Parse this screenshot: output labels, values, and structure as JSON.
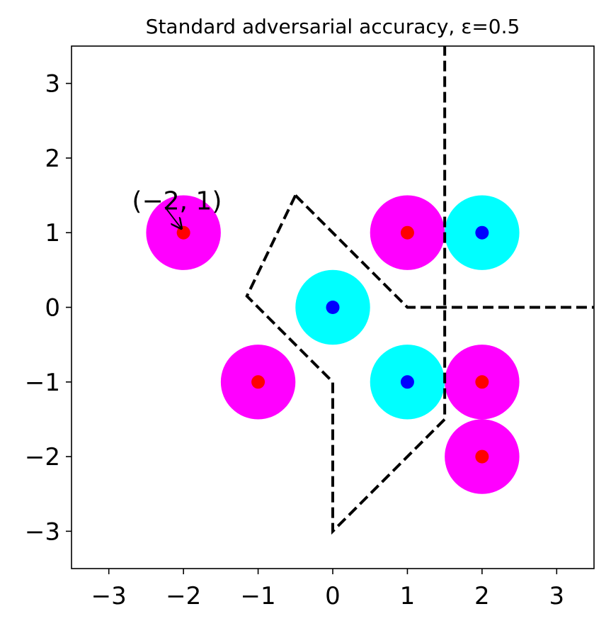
{
  "chart_data": {
    "type": "scatter",
    "title": "Standard adversarial accuracy, ε=0.5",
    "xlabel": "",
    "ylabel": "",
    "xlim": [
      -3.5,
      3.5
    ],
    "ylim": [
      -3.5,
      3.5
    ],
    "xticks": [
      -3,
      -2,
      -1,
      0,
      1,
      2,
      3
    ],
    "yticks": [
      -3,
      -2,
      -1,
      0,
      1,
      2,
      3
    ],
    "xtick_labels": [
      "−3",
      "−2",
      "−1",
      "0",
      "1",
      "2",
      "3"
    ],
    "ytick_labels": [
      "−3",
      "−2",
      "−1",
      "0",
      "1",
      "2",
      "3"
    ],
    "grid": false,
    "epsilon": 0.5,
    "series": [
      {
        "color": "#ff0000",
        "ball_color": "#ff00ff",
        "points": [
          [
            -2,
            1
          ],
          [
            1,
            1
          ],
          [
            -1,
            -1
          ],
          [
            2,
            -1
          ],
          [
            2,
            -2
          ]
        ]
      },
      {
        "color": "#0000ff",
        "ball_color": "#00ffff",
        "points": [
          [
            2,
            1
          ],
          [
            0,
            0
          ],
          [
            1,
            -1
          ]
        ]
      }
    ],
    "decision_boundary": {
      "style": "dashed",
      "color": "#000000",
      "segments": [
        [
          [
            -0.5,
            1.5
          ],
          [
            -1.15,
            0.15
          ],
          [
            0,
            -1
          ],
          [
            0,
            -3
          ],
          [
            1.5,
            -1.5
          ],
          [
            1.5,
            3.5
          ]
        ],
        [
          [
            -0.5,
            1.5
          ],
          [
            1,
            0
          ],
          [
            3.5,
            0
          ]
        ]
      ]
    },
    "annotations": [
      {
        "text": "(−2, 1)",
        "xy": [
          -2,
          1
        ],
        "xytext": [
          -2.5,
          1.5
        ],
        "arrow": true
      }
    ]
  }
}
